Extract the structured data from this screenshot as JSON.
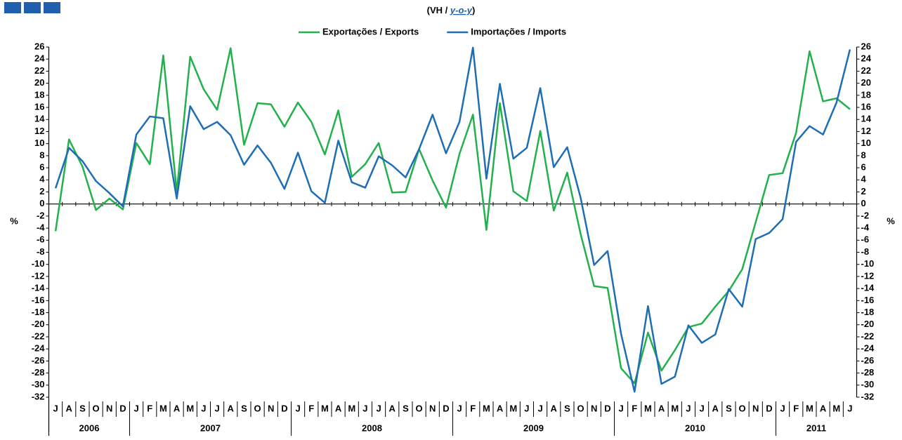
{
  "chart_data": {
    "type": "line",
    "title": {
      "prefix": "(VH / ",
      "emphasis": "y-o-y",
      "suffix": ")"
    },
    "y_label": "%",
    "y2_label": "%",
    "categories": [
      "J",
      "A",
      "S",
      "O",
      "N",
      "D",
      "J",
      "F",
      "M",
      "A",
      "M",
      "J",
      "J",
      "A",
      "S",
      "O",
      "N",
      "D",
      "J",
      "F",
      "M",
      "A",
      "M",
      "J",
      "J",
      "A",
      "S",
      "O",
      "N",
      "D",
      "J",
      "F",
      "M",
      "A",
      "M",
      "J",
      "J",
      "A",
      "S",
      "O",
      "N",
      "D",
      "J",
      "F",
      "M",
      "A",
      "M",
      "J",
      "J",
      "A",
      "S",
      "O",
      "N",
      "D",
      "J",
      "F",
      "M",
      "A",
      "M",
      "J"
    ],
    "years": [
      "2006",
      "2007",
      "2008",
      "2009",
      "2010",
      "2011"
    ],
    "series": [
      {
        "name": "Exportações / Exports",
        "color": "#22b14c",
        "values": [
          -4.5,
          10.7,
          6.2,
          -1,
          0.9,
          -0.9,
          10.1,
          6.6,
          24.6,
          2,
          24.4,
          19,
          15.6,
          25.8,
          9.8,
          16.7,
          16.5,
          12.8,
          16.8,
          13.6,
          8.2,
          15.5,
          4.5,
          6.6,
          10.1,
          1.9,
          2,
          9.1,
          3.9,
          -0.6,
          8.3,
          14.8,
          -4.3,
          16.7,
          2.1,
          0.5,
          12.1,
          -1.1,
          5.2,
          -5,
          -13.6,
          -13.9,
          -27.2,
          -29.7,
          -21.3,
          -27.6,
          -24.2,
          -20.4,
          -19.8,
          -17,
          -14.4,
          -10.8,
          -3,
          4.8,
          5.1,
          11.8,
          25.3,
          17,
          17.5,
          15.7
        ]
      },
      {
        "name": "Importações / Imports",
        "color": "#1f6db4",
        "values": [
          2.6,
          9.3,
          7.1,
          3.8,
          1.8,
          -0.4,
          11.5,
          14.5,
          14.2,
          0.9,
          16.2,
          12.4,
          13.6,
          11.4,
          6.5,
          9.7,
          6.8,
          2.5,
          8.5,
          2.1,
          0.2,
          10.5,
          3.6,
          2.7,
          7.9,
          6.4,
          4.4,
          9.1,
          14.8,
          8.4,
          13.6,
          25.9,
          4.2,
          19.9,
          7.5,
          9.3,
          19.2,
          6.1,
          9.4,
          1,
          -10.1,
          -7.8,
          -21.5,
          -31.1,
          -16.9,
          -29.8,
          -28.6,
          -20.1,
          -23,
          -21.6,
          -14.1,
          -17,
          -5.8,
          -4.8,
          -2.5,
          10.3,
          12.9,
          11.5,
          16.8,
          25.6
        ]
      }
    ],
    "ylim": [
      -32,
      26
    ],
    "yticks": [
      -32,
      -30,
      -28,
      -26,
      -24,
      -22,
      -20,
      -18,
      -16,
      -14,
      -12,
      -10,
      -8,
      -6,
      -4,
      -2,
      0,
      2,
      4,
      6,
      8,
      10,
      12,
      14,
      16,
      18,
      20,
      22,
      24,
      26
    ],
    "y2lim": [
      -32,
      26
    ],
    "y2ticks": [
      -32,
      -30,
      -28,
      -26,
      -24,
      -22,
      -20,
      -18,
      -16,
      -14,
      -12,
      -10,
      -8,
      -6,
      -4,
      -2,
      0,
      2,
      4,
      6,
      8,
      10,
      12,
      14,
      16,
      18,
      20,
      22,
      24,
      26
    ]
  }
}
